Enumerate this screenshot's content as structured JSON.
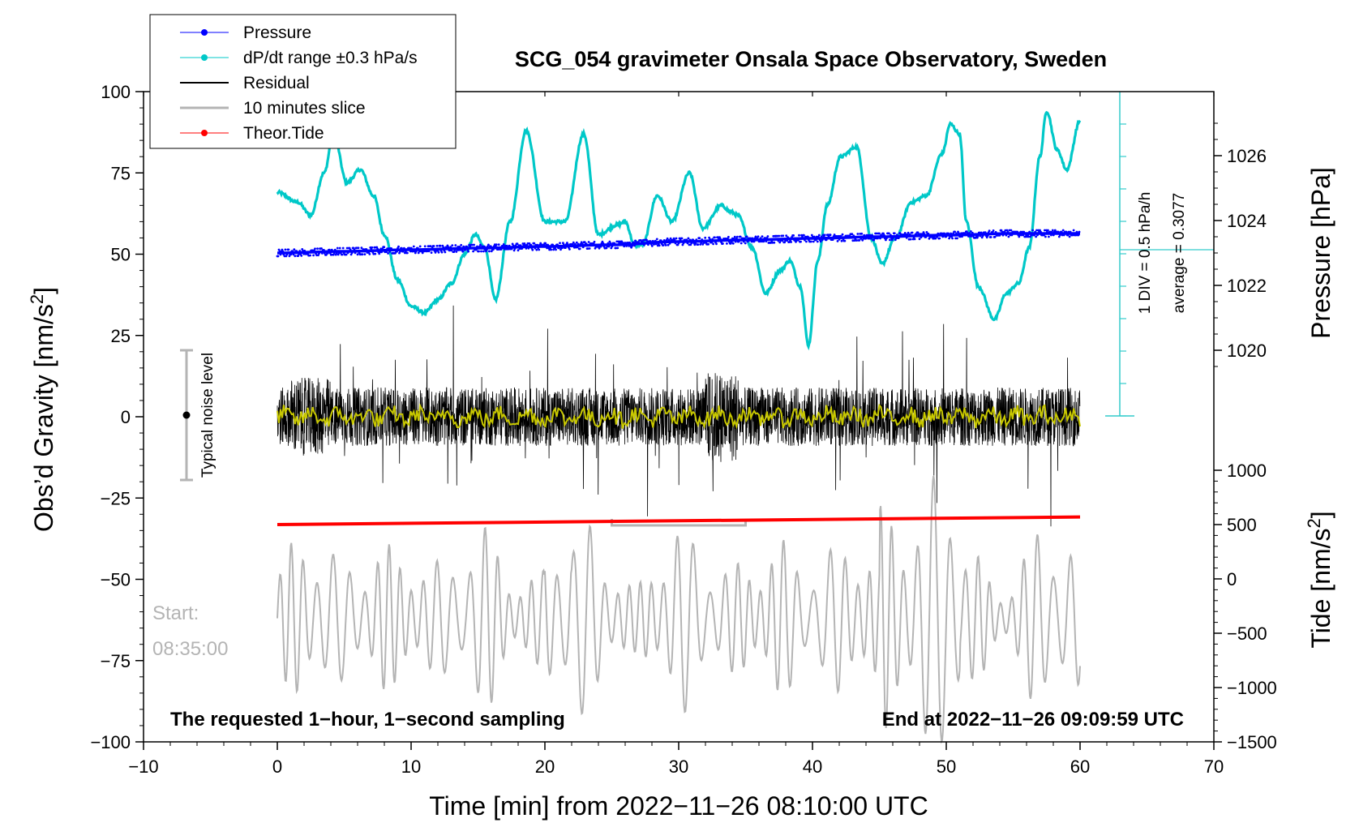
{
  "chart_data": {
    "type": "line",
    "title": "SCG_054 gravimeter Onsala Space Observatory, Sweden",
    "xlabel_prefix": "Time [min] from 2022",
    "xlabel_date": "11",
    "xlabel_day": "26",
    "xlabel_time": "08:10:00 UTC",
    "ylabel_left": "Obs’d Gravity [nm/s",
    "ylabel_left_sup": "2",
    "ylabel_left_end": "]",
    "ylabel_right_pressure": "Pressure [hPa]",
    "ylabel_right_tide": "Tide [nm/s",
    "ylabel_right_tide_sup": "2",
    "ylabel_right_tide_end": "]",
    "xlim": [
      -10,
      70
    ],
    "ylim_left": [
      -100,
      100
    ],
    "x_ticks": [
      -10,
      0,
      10,
      20,
      30,
      40,
      50,
      60,
      70
    ],
    "x_tick_labels": [
      "−10",
      "0",
      "10",
      "20",
      "30",
      "40",
      "50",
      "60",
      "70"
    ],
    "y_left_ticks": [
      100,
      75,
      50,
      25,
      0,
      -25,
      -50,
      -75,
      -100
    ],
    "y_left_tick_labels": [
      "100",
      "75",
      "50",
      "25",
      "0",
      "−25",
      "−50",
      "−75",
      "−100"
    ],
    "pressure_ticks": [
      1026,
      1024,
      1022,
      1020
    ],
    "pressure_tick_labels": [
      "1026",
      "1024",
      "1022",
      "1020"
    ],
    "tide_ticks": [
      1000,
      500,
      0,
      -500,
      -1000,
      -1500
    ],
    "tide_tick_labels": [
      "1000",
      "500",
      "0",
      "−500",
      "−1000",
      "−1500"
    ],
    "legend": [
      {
        "label": "Pressure",
        "color": "#0000ff",
        "marker": true
      },
      {
        "label": "dP/dt range ±0.3 hPa/s",
        "color": "#00c8c8",
        "marker": true
      },
      {
        "label": "Residual",
        "color": "#000000",
        "marker": false
      },
      {
        "label": "10 minutes slice",
        "color": "#b4b4b4",
        "marker": false
      },
      {
        "label": "Theor.Tide",
        "color": "#ff0000",
        "marker": true
      }
    ],
    "annotations": {
      "sampling_note": "The requested 1−hour, 1−second sampling",
      "end_note": "End at 2022−11−26 09:09:59 UTC",
      "start_label": "Start:",
      "start_time": "08:35:00",
      "noise_label": "Typical noise level",
      "div_label": "1 DIV = 0.5 hPa/h",
      "average_label": "average = 0.3077"
    },
    "series": [
      {
        "name": "Pressure",
        "color": "#0000ff",
        "x": [
          0,
          5,
          10,
          15,
          20,
          25,
          30,
          35,
          40,
          45,
          50,
          55,
          60
        ],
        "y_hpa": [
          1023.0,
          1023.05,
          1023.1,
          1023.15,
          1023.2,
          1023.25,
          1023.35,
          1023.4,
          1023.45,
          1023.5,
          1023.55,
          1023.6,
          1023.6
        ]
      },
      {
        "name": "dP/dt",
        "color": "#00c8c8",
        "x": [
          0,
          1.5,
          2.5,
          3.5,
          4.2,
          5.2,
          6.2,
          7.2,
          8,
          9,
          10,
          11,
          12,
          13,
          14,
          14.8,
          15.5,
          16.3,
          17.4,
          18.6,
          20,
          21.5,
          22.9,
          24,
          25.4,
          26,
          26.7,
          27.3,
          28.4,
          29.5,
          30.8,
          31.8,
          33.2,
          33.9,
          34.4,
          35.5,
          36.5,
          37.6,
          38.3,
          39.1,
          39.7,
          40.4,
          41.1,
          42.1,
          43.3,
          44.4,
          45.2,
          46.2,
          47.4,
          48.5,
          49.7,
          50.3,
          51,
          51.5,
          52.4,
          53.6,
          54.5,
          55.4,
          56.2,
          57,
          57.5,
          58.3,
          59,
          60
        ],
        "y": [
          69,
          66,
          62,
          75,
          87,
          72,
          76,
          68,
          56,
          42,
          34,
          32,
          36,
          41,
          50,
          56,
          52,
          36,
          60,
          88,
          60,
          60,
          87,
          56,
          59,
          60,
          53,
          53,
          68,
          60,
          75,
          58,
          65,
          63,
          62,
          52,
          38,
          45,
          48,
          40,
          22,
          48,
          65,
          80,
          83,
          55,
          47,
          55,
          66,
          68,
          81,
          90,
          87,
          60,
          40,
          30,
          38,
          41,
          52,
          80,
          94,
          82,
          76,
          91
        ]
      },
      {
        "name": "Theor.Tide",
        "color": "#ff0000",
        "x": [
          0,
          60
        ],
        "y_tide": [
          500,
          570
        ]
      }
    ]
  }
}
